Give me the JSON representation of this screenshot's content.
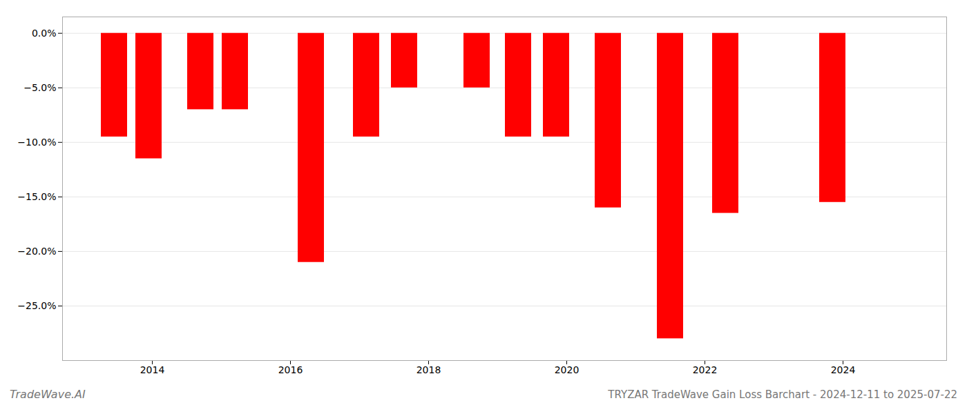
{
  "chart_data": {
    "type": "bar",
    "title": "TRYZAR TradeWave Gain Loss Barchart - 2024-12-11 to 2025-07-22",
    "annotations": [
      "TradeWave.AI"
    ],
    "x": [
      2013.45,
      2013.95,
      2014.7,
      2015.2,
      2016.3,
      2017.1,
      2017.65,
      2018.7,
      2019.3,
      2019.85,
      2020.6,
      2021.5,
      2022.3,
      2023.85
    ],
    "values": [
      -9.5,
      -11.5,
      -7.0,
      -7.0,
      -21.0,
      -9.5,
      -5.0,
      -5.0,
      -9.5,
      -9.5,
      -16.0,
      -28.0,
      -16.5,
      -15.5
    ],
    "color": "#ff0000",
    "xlim": [
      2012.7,
      2025.5
    ],
    "xticks": [
      2014,
      2016,
      2018,
      2020,
      2022,
      2024
    ],
    "ylim": [
      -30,
      1.5
    ],
    "yticks": [
      {
        "value": 0,
        "label": "0.0%"
      },
      {
        "value": -5,
        "label": "−5.0%"
      },
      {
        "value": -10,
        "label": "−10.0%"
      },
      {
        "value": -15,
        "label": "−15.0%"
      },
      {
        "value": -20,
        "label": "−20.0%"
      },
      {
        "value": -25,
        "label": "−25.0%"
      }
    ],
    "grid": true
  }
}
